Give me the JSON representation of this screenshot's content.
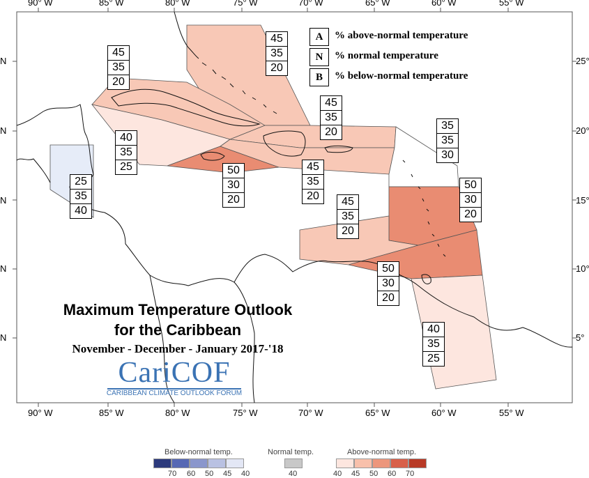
{
  "map": {
    "lon_ticks": [
      "90° W",
      "85° W",
      "80° W",
      "75° W",
      "70° W",
      "65° W",
      "60° W",
      "55° W"
    ],
    "lat_ticks_left": [
      "N",
      "N",
      "N",
      "N",
      "N"
    ],
    "lat_ticks_right": [
      "25°",
      "20°",
      "15°",
      "10°",
      "5°"
    ],
    "zones": [
      {
        "name": "bahamas",
        "A": "45",
        "N": "35",
        "B": "20",
        "fill": "#f8c8b6"
      },
      {
        "name": "cuba",
        "A": "45",
        "N": "35",
        "B": "20",
        "fill": "#f8c8b6"
      },
      {
        "name": "belize-yucatan",
        "A": "25",
        "N": "35",
        "B": "40",
        "fill": "#e6ecf8"
      },
      {
        "name": "western-caribbean",
        "A": "40",
        "N": "35",
        "B": "25",
        "fill": "#fde6df"
      },
      {
        "name": "jamaica",
        "A": "50",
        "N": "30",
        "B": "20",
        "fill": "#e98c72"
      },
      {
        "name": "hispaniola-puerto-rico",
        "A": "45",
        "N": "35",
        "B": "20",
        "fill": "#f8c8b6"
      },
      {
        "name": "northern-hispaniola",
        "A": "45",
        "N": "35",
        "B": "20",
        "fill": "#f8c8b6"
      },
      {
        "name": "leeward-islands",
        "A": "35",
        "N": "35",
        "B": "30",
        "fill": "#ffffff"
      },
      {
        "name": "windward-islands",
        "A": "50",
        "N": "30",
        "B": "20",
        "fill": "#e98c72"
      },
      {
        "name": "abc-islands",
        "A": "45",
        "N": "35",
        "B": "20",
        "fill": "#f8c8b6"
      },
      {
        "name": "trinidad",
        "A": "50",
        "N": "30",
        "B": "20",
        "fill": "#e98c72"
      },
      {
        "name": "guianas",
        "A": "40",
        "N": "35",
        "B": "25",
        "fill": "#fde6df"
      }
    ]
  },
  "key": [
    {
      "letter": "A",
      "text": "% above-normal temperature"
    },
    {
      "letter": "N",
      "text": "% normal temperature"
    },
    {
      "letter": "B",
      "text": "% below-normal temperature"
    }
  ],
  "title_line1": "Maximum Temperature Outlook",
  "title_line2": "for the Caribbean",
  "subtitle": "November - December - January 2017-'18",
  "logo": {
    "main": "CariCOF",
    "sub": "CARIBBEAN CLIMATE OUTLOOK FORUM"
  },
  "colorbar": {
    "below_label": "Below-normal temp.",
    "normal_label": "Normal temp.",
    "above_label": "Above-normal temp.",
    "below_colors": [
      "#2c3a7c",
      "#5668b4",
      "#8a96cc",
      "#b9c1e2",
      "#e3e7f5"
    ],
    "below_ticks": [
      "70",
      "60",
      "50",
      "45",
      "40"
    ],
    "normal_color": "#c8c8c8",
    "normal_tick": "40",
    "above_colors": [
      "#fde6df",
      "#f8c0ab",
      "#ec967c",
      "#d8604a",
      "#b83a26"
    ],
    "above_ticks": [
      "40",
      "45",
      "50",
      "60",
      "70"
    ]
  }
}
